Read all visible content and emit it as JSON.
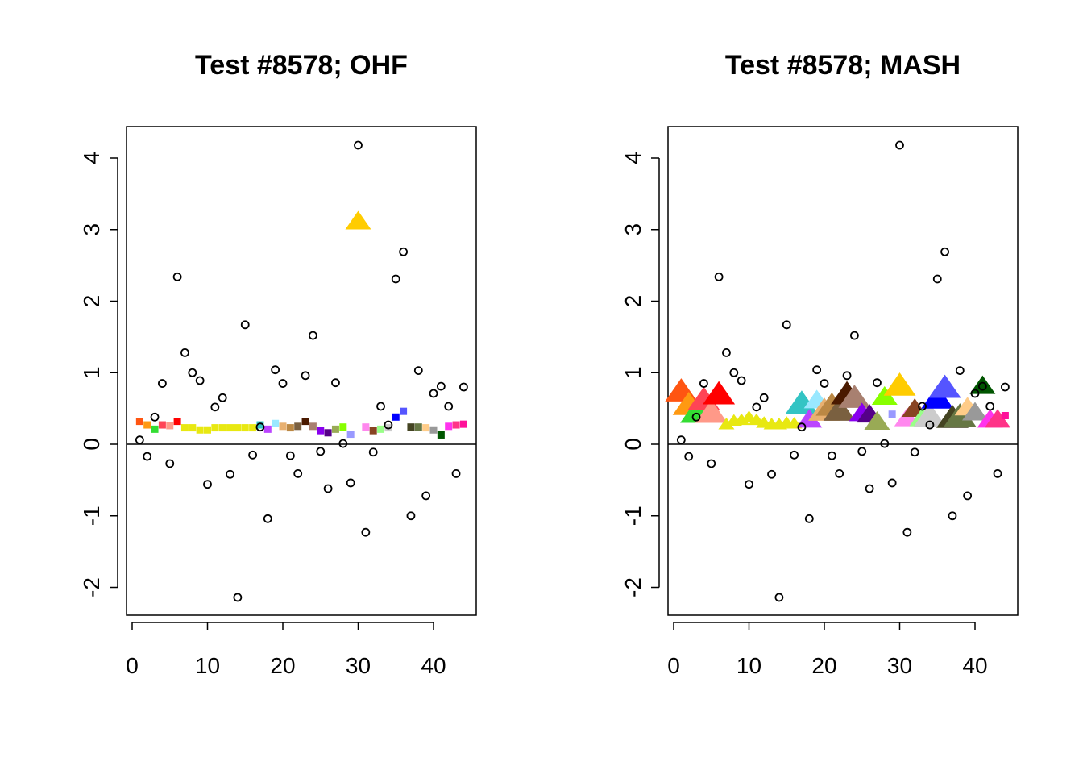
{
  "chart_data": [
    {
      "type": "scatter",
      "title": "Test #8578; OHF",
      "xlim": [
        0,
        44
      ],
      "ylim": [
        -2.4,
        4.4
      ],
      "xticks": [
        "0",
        "10",
        "20",
        "30",
        "40"
      ],
      "yticks": [
        "-2",
        "-1",
        "0",
        "1",
        "2",
        "3",
        "4"
      ],
      "hline": 0,
      "marker": "square",
      "special": {
        "x": 30,
        "y": 3.1,
        "marker": "triangle",
        "color": "#FFCC00"
      }
    },
    {
      "type": "scatter",
      "title": "Test #8578; MASH",
      "xlim": [
        0,
        44
      ],
      "ylim": [
        -2.4,
        4.4
      ],
      "xticks": [
        "0",
        "10",
        "20",
        "30",
        "40"
      ],
      "yticks": [
        "-2",
        "-1",
        "0",
        "1",
        "2",
        "3",
        "4"
      ],
      "hline": 0,
      "marker": "triangle",
      "square_indices": [
        29,
        44
      ]
    }
  ],
  "observed": [
    0.06,
    -0.17,
    0.38,
    0.85,
    -0.27,
    2.34,
    1.28,
    1.0,
    0.89,
    -0.56,
    0.52,
    0.65,
    -0.42,
    -2.14,
    1.67,
    -0.15,
    0.24,
    -1.04,
    1.04,
    0.85,
    -0.16,
    -0.41,
    0.96,
    1.52,
    -0.1,
    -0.62,
    0.86,
    0.01,
    -0.54,
    4.18,
    -1.23,
    -0.11,
    0.53,
    0.27,
    2.31,
    2.69,
    -1.0,
    1.03,
    -0.72,
    0.71,
    0.81,
    0.53,
    -0.41,
    0.8
  ],
  "colors": [
    "#FF5511",
    "#FF9911",
    "#33DD33",
    "#FF4455",
    "#FF9988",
    "#FF0000",
    "#E8E811",
    "#E8E811",
    "#E8E811",
    "#E8E811",
    "#E8E811",
    "#E8E811",
    "#E8E811",
    "#E8E811",
    "#E8E811",
    "#E8E811",
    "#33C4C4",
    "#BB44FF",
    "#99E8FF",
    "#E8B070",
    "#BB8844",
    "#7A6040",
    "#4A1A00",
    "#A88070",
    "#8800EE",
    "#550088",
    "#99AA55",
    "#88FF00",
    "#9999FF",
    "#FFCC00",
    "#FF88EE",
    "#884422",
    "#99FF88",
    "#CCCCCC",
    "#0000FF",
    "#5555FF",
    "#444422",
    "#667744",
    "#FFCC88",
    "#999999",
    "#005500",
    "#FF33EE",
    "#FF3388",
    "#FF1199"
  ],
  "ohf": [
    0.32,
    0.27,
    0.21,
    0.27,
    0.26,
    0.32,
    0.23,
    0.23,
    0.2,
    0.2,
    0.23,
    0.23,
    0.23,
    0.23,
    0.23,
    0.23,
    0.27,
    0.21,
    0.29,
    0.25,
    0.23,
    0.25,
    0.32,
    0.25,
    0.19,
    0.16,
    0.21,
    0.24,
    0.14,
    3.1,
    0.24,
    0.19,
    0.21,
    0.23,
    0.38,
    0.46,
    0.24,
    0.24,
    0.23,
    0.2,
    0.13,
    0.25,
    0.27,
    0.28
  ],
  "mash": [
    0.72,
    0.53,
    0.42,
    0.6,
    0.42,
    0.68,
    0.27,
    0.32,
    0.33,
    0.37,
    0.33,
    0.29,
    0.27,
    0.27,
    0.29,
    0.28,
    0.55,
    0.33,
    0.6,
    0.45,
    0.52,
    0.45,
    0.68,
    0.63,
    0.42,
    0.4,
    0.3,
    0.65,
    0.42,
    0.8,
    0.35,
    0.48,
    0.35,
    0.37,
    0.62,
    0.77,
    0.35,
    0.37,
    0.5,
    0.43,
    0.8,
    0.33,
    0.33,
    0.4
  ],
  "mash_size": [
    2,
    2,
    2,
    2,
    2,
    2,
    1,
    1,
    1,
    1,
    1,
    1,
    1,
    1,
    1,
    1,
    2,
    1.6,
    1.6,
    2,
    2,
    2,
    2,
    2,
    1.6,
    1.6,
    1.6,
    1.6,
    1,
    2,
    1.6,
    1.6,
    1.6,
    2,
    2,
    2,
    2,
    2,
    1.6,
    1.6,
    1.6,
    1.6,
    1.6,
    1
  ]
}
